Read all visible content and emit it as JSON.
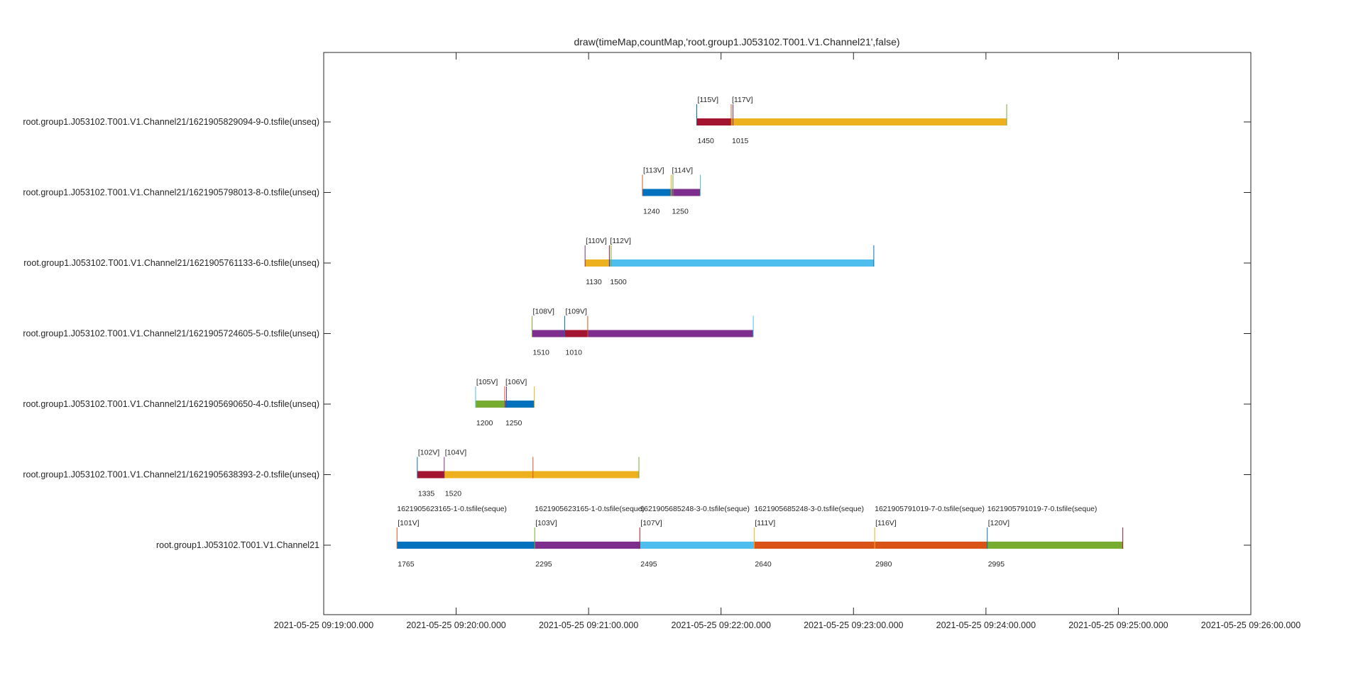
{
  "chart_data": {
    "type": "timeline",
    "title": "draw(timeMap,countMap,'root.group1.J053102.T001.V1.Channel21',false)",
    "x_axis": {
      "min_seconds": 0,
      "max_seconds": 420,
      "tick_seconds": [
        0,
        60,
        120,
        180,
        240,
        300,
        360,
        420
      ],
      "tick_labels": [
        "2021-05-25 09:19:00.000",
        "2021-05-25 09:20:00.000",
        "2021-05-25 09:21:00.000",
        "2021-05-25 09:22:00.000",
        "2021-05-25 09:23:00.000",
        "2021-05-25 09:24:00.000",
        "2021-05-25 09:25:00.000",
        "2021-05-25 09:26:00.000"
      ]
    },
    "rows": [
      {
        "label": "root.group1.J053102.T001.V1.Channel21/1621905829094-9-0.tsfile(unseq)",
        "segments": [
          {
            "start": 169,
            "end": 184.6,
            "color": "#a2142f",
            "version": "[115V]",
            "count": "1450"
          },
          {
            "start": 184.6,
            "end": 309.4,
            "color": "#edb120",
            "version": "[117V]",
            "count": "1015"
          }
        ],
        "markers": [
          {
            "t": 169,
            "color": "#0072bd"
          },
          {
            "t": 184.6,
            "color": "#d95319"
          },
          {
            "t": 185.4,
            "color": "#7e2f8e"
          },
          {
            "t": 309.4,
            "color": "#77ac30"
          }
        ]
      },
      {
        "label": "root.group1.J053102.T001.V1.Channel21/1621905798013-8-0.tsfile(unseq)",
        "segments": [
          {
            "start": 144.4,
            "end": 157.4,
            "color": "#0072bd",
            "version": "[113V]",
            "count": "1240"
          },
          {
            "start": 157.4,
            "end": 170.6,
            "color": "#7e2f8e",
            "version": "[114V]",
            "count": "1250"
          }
        ],
        "markers": [
          {
            "t": 144.4,
            "color": "#d95319"
          },
          {
            "t": 157.4,
            "color": "#edb120"
          },
          {
            "t": 158.2,
            "color": "#77ac30"
          },
          {
            "t": 170.6,
            "color": "#4dbeee"
          }
        ]
      },
      {
        "label": "root.group1.J053102.T001.V1.Channel21/1621905761133-6-0.tsfile(unseq)",
        "segments": [
          {
            "start": 118.4,
            "end": 129.4,
            "color": "#edb120",
            "version": "[110V]",
            "count": "1130"
          },
          {
            "start": 129.4,
            "end": 249.2,
            "color": "#4dbeee",
            "version": "[112V]",
            "count": "1500"
          }
        ],
        "markers": [
          {
            "t": 118.4,
            "color": "#7e2f8e"
          },
          {
            "t": 129.4,
            "color": "#a2142f"
          },
          {
            "t": 130.2,
            "color": "#77ac30"
          },
          {
            "t": 249.2,
            "color": "#0072bd"
          }
        ]
      },
      {
        "label": "root.group1.J053102.T001.V1.Channel21/1621905724605-5-0.tsfile(unseq)",
        "segments": [
          {
            "start": 94.4,
            "end": 109.2,
            "color": "#7e2f8e",
            "version": "[108V]",
            "count": "1510"
          },
          {
            "start": 109.2,
            "end": 119.6,
            "color": "#a2142f",
            "version": "[109V]",
            "count": "1010"
          },
          {
            "start": 119.6,
            "end": 194.6,
            "color": "#7e2f8e",
            "version": "",
            "count": ""
          }
        ],
        "markers": [
          {
            "t": 94.4,
            "color": "#77ac30"
          },
          {
            "t": 109.2,
            "color": "#0072bd"
          },
          {
            "t": 119.6,
            "color": "#d95319"
          },
          {
            "t": 194.6,
            "color": "#4dbeee"
          }
        ]
      },
      {
        "label": "root.group1.J053102.T001.V1.Channel21/1621905690650-4-0.tsfile(unseq)",
        "segments": [
          {
            "start": 68.8,
            "end": 82,
            "color": "#77ac30",
            "version": "[105V]",
            "count": "1200"
          },
          {
            "start": 82,
            "end": 95.4,
            "color": "#0072bd",
            "version": "[106V]",
            "count": "1250"
          }
        ],
        "markers": [
          {
            "t": 68.8,
            "color": "#4dbeee"
          },
          {
            "t": 82,
            "color": "#d95319"
          },
          {
            "t": 82.8,
            "color": "#7e2f8e"
          },
          {
            "t": 95.4,
            "color": "#edb120"
          }
        ]
      },
      {
        "label": "root.group1.J053102.T001.V1.Channel21/1621905638393-2-0.tsfile(unseq)",
        "segments": [
          {
            "start": 42.4,
            "end": 54.6,
            "color": "#a2142f",
            "version": "[102V]",
            "count": "1335"
          },
          {
            "start": 54.6,
            "end": 142.8,
            "color": "#edb120",
            "version": "[104V]",
            "count": "1520"
          }
        ],
        "markers": [
          {
            "t": 42.4,
            "color": "#0072bd"
          },
          {
            "t": 54.6,
            "color": "#7e2f8e"
          },
          {
            "t": 94.8,
            "color": "#d95319"
          },
          {
            "t": 142.8,
            "color": "#77ac30"
          }
        ]
      },
      {
        "label": "root.group1.J053102.T001.V1.Channel21",
        "segments": [
          {
            "start": 33.2,
            "end": 95.6,
            "color": "#0072bd",
            "version": "[101V]",
            "count": "1765",
            "file": "1621905623165-1-0.tsfile(seque)"
          },
          {
            "start": 95.6,
            "end": 143.2,
            "color": "#7e2f8e",
            "version": "[103V]",
            "count": "2295",
            "file": "1621905623165-1-0.tsfile(seque)"
          },
          {
            "start": 143.2,
            "end": 195,
            "color": "#4dbeee",
            "version": "[107V]",
            "count": "2495",
            "file": "1621905685248-3-0.tsfile(seque)"
          },
          {
            "start": 195,
            "end": 249.6,
            "color": "#d95319",
            "version": "[111V]",
            "count": "2640",
            "file": "1621905685248-3-0.tsfile(seque)"
          },
          {
            "start": 249.6,
            "end": 300.6,
            "color": "#d95319",
            "version": "[116V]",
            "count": "2980",
            "file": "1621905791019-7-0.tsfile(seque)"
          },
          {
            "start": 300.6,
            "end": 362,
            "color": "#77ac30",
            "version": "[120V]",
            "count": "2995",
            "file": "1621905791019-7-0.tsfile(seque)"
          }
        ],
        "markers": [
          {
            "t": 33.2,
            "color": "#d95319"
          },
          {
            "t": 95.6,
            "color": "#77ac30"
          },
          {
            "t": 143.2,
            "color": "#a2142f"
          },
          {
            "t": 195,
            "color": "#edb120"
          },
          {
            "t": 249.6,
            "color": "#edb120"
          },
          {
            "t": 300.6,
            "color": "#0072bd"
          },
          {
            "t": 362,
            "color": "#a2142f"
          }
        ]
      }
    ]
  }
}
